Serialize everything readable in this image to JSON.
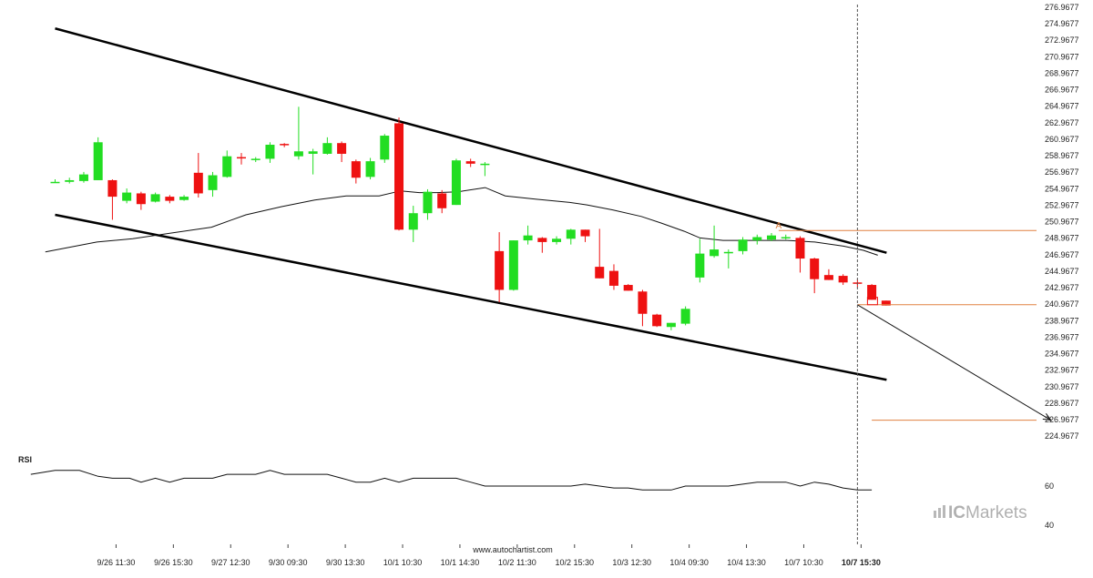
{
  "chart_data": {
    "type": "candlestick",
    "y_ticks": [
      "276.9677",
      "274.9677",
      "272.9677",
      "270.9677",
      "268.9677",
      "266.9677",
      "264.9677",
      "262.9677",
      "260.9677",
      "258.9677",
      "256.9677",
      "254.9677",
      "252.9677",
      "250.9677",
      "248.9677",
      "246.9677",
      "244.9677",
      "242.9677",
      "240.9677",
      "238.9677",
      "236.9677",
      "234.9677",
      "232.9677",
      "230.9677",
      "228.9677",
      "226.9677",
      "224.9677"
    ],
    "ylim": [
      224.0,
      277.5
    ],
    "x_ticks": [
      {
        "i": 4,
        "label": "9/26 11:30"
      },
      {
        "i": 8,
        "label": "9/26 15:30"
      },
      {
        "i": 12,
        "label": "9/27 12:30"
      },
      {
        "i": 16,
        "label": "9/30 09:30"
      },
      {
        "i": 20,
        "label": "9/30 13:30"
      },
      {
        "i": 24,
        "label": "10/1 10:30"
      },
      {
        "i": 28,
        "label": "10/1 14:30"
      },
      {
        "i": 32,
        "label": "10/2 11:30"
      },
      {
        "i": 36,
        "label": "10/2 15:30"
      },
      {
        "i": 40,
        "label": "10/3 12:30"
      },
      {
        "i": 44,
        "label": "10/4 09:30"
      },
      {
        "i": 48,
        "label": "10/4 13:30"
      },
      {
        "i": 52,
        "label": "10/7 10:30"
      },
      {
        "i": 56,
        "label": "10/7 15:30",
        "bold": true
      }
    ],
    "candles": [
      {
        "o": 255.8,
        "h": 256.1,
        "l": 255.7,
        "c": 255.8
      },
      {
        "o": 255.8,
        "h": 256.3,
        "l": 255.6,
        "c": 256.0
      },
      {
        "o": 255.9,
        "h": 257.0,
        "l": 255.7,
        "c": 256.7
      },
      {
        "o": 256.0,
        "h": 261.2,
        "l": 256.0,
        "c": 260.6
      },
      {
        "o": 256.0,
        "h": 256.1,
        "l": 251.2,
        "c": 254.0
      },
      {
        "o": 253.5,
        "h": 255.0,
        "l": 253.2,
        "c": 254.5
      },
      {
        "o": 254.4,
        "h": 254.6,
        "l": 252.4,
        "c": 253.1
      },
      {
        "o": 253.4,
        "h": 254.5,
        "l": 253.3,
        "c": 254.3
      },
      {
        "o": 254.0,
        "h": 254.2,
        "l": 253.2,
        "c": 253.5
      },
      {
        "o": 253.6,
        "h": 254.2,
        "l": 253.5,
        "c": 254.0
      },
      {
        "o": 256.9,
        "h": 259.3,
        "l": 253.9,
        "c": 254.4
      },
      {
        "o": 254.8,
        "h": 257.0,
        "l": 254.0,
        "c": 256.6
      },
      {
        "o": 256.4,
        "h": 259.6,
        "l": 256.3,
        "c": 258.9
      },
      {
        "o": 258.8,
        "h": 259.3,
        "l": 257.9,
        "c": 258.7
      },
      {
        "o": 258.5,
        "h": 258.8,
        "l": 258.2,
        "c": 258.6
      },
      {
        "o": 258.6,
        "h": 260.6,
        "l": 258.1,
        "c": 260.3
      },
      {
        "o": 260.4,
        "h": 260.5,
        "l": 260.0,
        "c": 260.3
      },
      {
        "o": 258.9,
        "h": 264.9,
        "l": 258.5,
        "c": 259.5
      },
      {
        "o": 259.2,
        "h": 259.8,
        "l": 256.7,
        "c": 259.5
      },
      {
        "o": 259.2,
        "h": 261.2,
        "l": 259.1,
        "c": 260.5
      },
      {
        "o": 260.5,
        "h": 260.7,
        "l": 258.2,
        "c": 259.2
      },
      {
        "o": 258.3,
        "h": 258.5,
        "l": 255.6,
        "c": 256.3
      },
      {
        "o": 256.4,
        "h": 258.7,
        "l": 256.1,
        "c": 258.3
      },
      {
        "o": 258.5,
        "h": 261.6,
        "l": 258.1,
        "c": 261.4
      },
      {
        "o": 262.9,
        "h": 263.6,
        "l": 249.9,
        "c": 250.0
      },
      {
        "o": 250.0,
        "h": 252.9,
        "l": 248.5,
        "c": 252.0
      },
      {
        "o": 252.0,
        "h": 254.9,
        "l": 251.2,
        "c": 254.6
      },
      {
        "o": 254.4,
        "h": 254.8,
        "l": 252.0,
        "c": 252.6
      },
      {
        "o": 253.0,
        "h": 258.6,
        "l": 253.0,
        "c": 258.4
      },
      {
        "o": 258.3,
        "h": 258.6,
        "l": 257.6,
        "c": 258.0
      },
      {
        "o": 258.0,
        "h": 258.2,
        "l": 256.5,
        "c": 258.0
      },
      {
        "o": 247.4,
        "h": 249.7,
        "l": 241.2,
        "c": 242.7
      },
      {
        "o": 242.7,
        "h": 248.7,
        "l": 242.6,
        "c": 248.7
      },
      {
        "o": 248.7,
        "h": 250.5,
        "l": 248.2,
        "c": 249.3
      },
      {
        "o": 249.0,
        "h": 249.1,
        "l": 247.2,
        "c": 248.5
      },
      {
        "o": 248.5,
        "h": 249.2,
        "l": 248.2,
        "c": 248.9
      },
      {
        "o": 248.9,
        "h": 250.1,
        "l": 248.2,
        "c": 250.0
      },
      {
        "o": 250.0,
        "h": 250.0,
        "l": 248.5,
        "c": 249.2
      },
      {
        "o": 245.5,
        "h": 250.1,
        "l": 244.1,
        "c": 244.1
      },
      {
        "o": 245.0,
        "h": 245.8,
        "l": 242.7,
        "c": 243.2
      },
      {
        "o": 243.3,
        "h": 243.4,
        "l": 242.6,
        "c": 242.6
      },
      {
        "o": 242.5,
        "h": 242.7,
        "l": 238.3,
        "c": 239.8
      },
      {
        "o": 239.7,
        "h": 239.8,
        "l": 238.2,
        "c": 238.3
      },
      {
        "o": 238.2,
        "h": 238.7,
        "l": 237.8,
        "c": 238.7
      },
      {
        "o": 238.6,
        "h": 240.7,
        "l": 238.4,
        "c": 240.4
      },
      {
        "o": 244.2,
        "h": 248.9,
        "l": 243.6,
        "c": 247.1
      },
      {
        "o": 246.8,
        "h": 250.5,
        "l": 246.6,
        "c": 247.6
      },
      {
        "o": 247.3,
        "h": 247.6,
        "l": 245.3,
        "c": 247.3
      },
      {
        "o": 247.4,
        "h": 249.1,
        "l": 247.0,
        "c": 248.8
      },
      {
        "o": 248.7,
        "h": 249.4,
        "l": 248.2,
        "c": 249.1
      },
      {
        "o": 248.8,
        "h": 249.6,
        "l": 248.6,
        "c": 249.3
      },
      {
        "o": 249.0,
        "h": 249.4,
        "l": 248.8,
        "c": 249.1
      },
      {
        "o": 249.0,
        "h": 249.2,
        "l": 244.8,
        "c": 246.5
      },
      {
        "o": 246.5,
        "h": 246.6,
        "l": 242.3,
        "c": 244.0
      },
      {
        "o": 244.5,
        "h": 245.2,
        "l": 243.9,
        "c": 243.9
      },
      {
        "o": 244.4,
        "h": 244.6,
        "l": 243.3,
        "c": 243.6
      },
      {
        "o": 243.6,
        "h": 244.0,
        "l": 243.0,
        "c": 243.5
      },
      {
        "o": 243.3,
        "h": 243.4,
        "l": 241.5,
        "c": 241.5
      },
      {
        "o": 241.4,
        "h": 241.4,
        "l": 240.8,
        "c": 240.8
      }
    ],
    "ma": [
      [
        -1.7,
        247.3
      ],
      [
        1.9,
        248.5
      ],
      [
        4.4,
        248.9
      ],
      [
        7.1,
        249.6
      ],
      [
        9.9,
        250.3
      ],
      [
        12.3,
        251.8
      ],
      [
        14.8,
        252.8
      ],
      [
        17.1,
        253.6
      ],
      [
        19.3,
        254.1
      ],
      [
        21.6,
        254.1
      ],
      [
        23.1,
        254.7
      ],
      [
        24.4,
        254.5
      ],
      [
        25.6,
        254.5
      ],
      [
        27.1,
        254.6
      ],
      [
        29.0,
        255.1
      ],
      [
        30.4,
        254.1
      ],
      [
        32.5,
        253.7
      ],
      [
        34.9,
        253.3
      ],
      [
        36.1,
        253.0
      ],
      [
        37.9,
        252.4
      ],
      [
        39.9,
        251.6
      ],
      [
        41.3,
        250.8
      ],
      [
        42.9,
        249.8
      ],
      [
        44.0,
        249.0
      ],
      [
        45.6,
        248.7
      ],
      [
        48.0,
        248.7
      ],
      [
        50.1,
        248.7
      ],
      [
        52.0,
        248.5
      ],
      [
        54.0,
        248.0
      ],
      [
        55.4,
        247.5
      ],
      [
        56.4,
        246.9
      ]
    ],
    "channel_upper": [
      [
        0.0,
        274.4
      ],
      [
        56.0,
        247.2
      ]
    ],
    "channel_lower": [
      [
        0.0,
        251.8
      ],
      [
        56.0,
        231.8
      ]
    ],
    "forecast_arrow": [
      [
        56.0,
        240.9
      ],
      [
        69.5,
        226.9
      ]
    ],
    "level_lines": [
      {
        "value": 249.9,
        "from_i": 50.5,
        "to_i": 75.5,
        "marker": "A"
      },
      {
        "value": 240.9,
        "from_i": 56.0,
        "to_i": 75.5
      },
      {
        "value": 226.9,
        "from_i": 57.0,
        "to_i": 75.5
      }
    ],
    "marker_box": {
      "i": 56.7,
      "top": 241.8,
      "bottom": 240.9
    },
    "current_index": 56,
    "rsi": {
      "label": "RSI",
      "ticks": [
        60,
        40
      ],
      "ylim": [
        35,
        90
      ],
      "values": [
        [
          -1.7,
          66
        ],
        [
          0.0,
          68
        ],
        [
          1.7,
          68
        ],
        [
          3.0,
          65
        ],
        [
          4.0,
          64
        ],
        [
          5.2,
          64
        ],
        [
          6.0,
          62
        ],
        [
          7.0,
          64
        ],
        [
          8.0,
          62
        ],
        [
          9.0,
          64
        ],
        [
          10.0,
          64
        ],
        [
          11.0,
          64
        ],
        [
          12.0,
          66
        ],
        [
          13.0,
          66
        ],
        [
          14.0,
          66
        ],
        [
          15.0,
          68
        ],
        [
          16.0,
          66
        ],
        [
          17.0,
          66
        ],
        [
          18.0,
          66
        ],
        [
          19.0,
          66
        ],
        [
          20.0,
          64
        ],
        [
          21.0,
          62
        ],
        [
          22.0,
          62
        ],
        [
          23.0,
          64
        ],
        [
          24.0,
          62
        ],
        [
          25.0,
          64
        ],
        [
          26.0,
          64
        ],
        [
          27.0,
          64
        ],
        [
          28.0,
          64
        ],
        [
          29.0,
          62
        ],
        [
          30.0,
          60
        ],
        [
          31.0,
          60
        ],
        [
          32.0,
          60
        ],
        [
          33.0,
          60
        ],
        [
          34.0,
          60
        ],
        [
          35.0,
          60
        ],
        [
          36.0,
          60
        ],
        [
          37.0,
          61
        ],
        [
          38.0,
          60
        ],
        [
          39.0,
          59
        ],
        [
          40.0,
          59
        ],
        [
          41.0,
          58
        ],
        [
          42.0,
          58
        ],
        [
          43.0,
          58
        ],
        [
          44.0,
          60
        ],
        [
          45.0,
          60
        ],
        [
          46.0,
          60
        ],
        [
          47.0,
          60
        ],
        [
          48.0,
          61
        ],
        [
          49.0,
          62
        ],
        [
          50.0,
          62
        ],
        [
          51.0,
          62
        ],
        [
          52.0,
          60
        ],
        [
          53.0,
          62
        ],
        [
          54.0,
          61
        ],
        [
          55.0,
          59
        ],
        [
          56.0,
          58
        ],
        [
          57.0,
          58
        ]
      ]
    },
    "annotations": [
      "A"
    ],
    "colors": {
      "up": "#22dd22",
      "down": "#ee1111",
      "level": "#e08040",
      "line": "#000000"
    }
  },
  "footer": {
    "source": "www.autochartist.com"
  },
  "brand": {
    "name_prefix": "IC",
    "name_suffix": "Markets"
  }
}
